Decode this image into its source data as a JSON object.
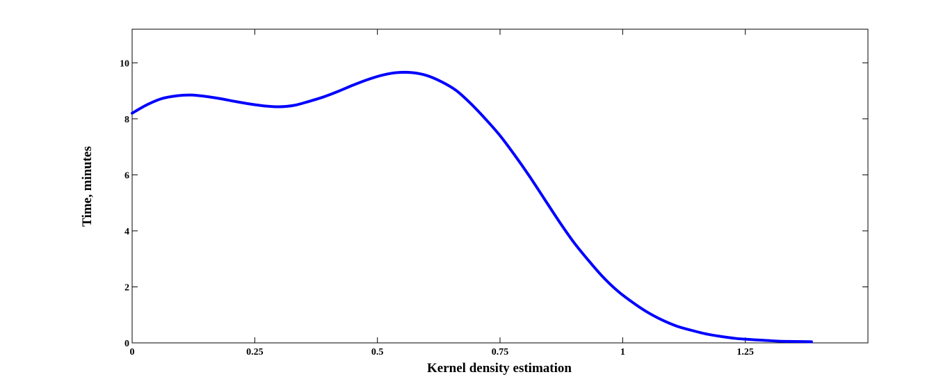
{
  "chart_data": {
    "type": "line",
    "title": "",
    "xlabel": "Kernel density estimation",
    "ylabel": "Time, minutes",
    "xlim": [
      0,
      1.5
    ],
    "ylim": [
      0,
      11.2
    ],
    "grid": false,
    "legend": "none",
    "x_ticks": [
      {
        "value": 0,
        "label": "0"
      },
      {
        "value": 0.25,
        "label": "0.25"
      },
      {
        "value": 0.5,
        "label": "0.5"
      },
      {
        "value": 0.75,
        "label": "0.75"
      },
      {
        "value": 1,
        "label": "1"
      },
      {
        "value": 1.25,
        "label": "1.25"
      }
    ],
    "y_ticks": [
      {
        "value": 0,
        "label": "0"
      },
      {
        "value": 2,
        "label": "2"
      },
      {
        "value": 4,
        "label": "4"
      },
      {
        "value": 6,
        "label": "6"
      },
      {
        "value": 8,
        "label": "8"
      },
      {
        "value": 10,
        "label": "10"
      }
    ],
    "series": [
      {
        "color": "#0000ff",
        "x": [
          0,
          0.03,
          0.06,
          0.09,
          0.12,
          0.15,
          0.18,
          0.21,
          0.24,
          0.27,
          0.3,
          0.33,
          0.36,
          0.39,
          0.42,
          0.45,
          0.48,
          0.51,
          0.54,
          0.57,
          0.6,
          0.63,
          0.66,
          0.69,
          0.72,
          0.75,
          0.78,
          0.81,
          0.84,
          0.87,
          0.9,
          0.93,
          0.96,
          0.99,
          1.02,
          1.05,
          1.08,
          1.11,
          1.14,
          1.17,
          1.2,
          1.23,
          1.26,
          1.29,
          1.32,
          1.35,
          1.385
        ],
        "y": [
          8.2,
          8.5,
          8.72,
          8.82,
          8.85,
          8.8,
          8.72,
          8.62,
          8.53,
          8.46,
          8.43,
          8.48,
          8.62,
          8.78,
          8.98,
          9.2,
          9.4,
          9.56,
          9.65,
          9.65,
          9.55,
          9.33,
          9.02,
          8.55,
          8.0,
          7.4,
          6.7,
          5.95,
          5.15,
          4.35,
          3.6,
          2.95,
          2.35,
          1.85,
          1.45,
          1.1,
          0.82,
          0.6,
          0.45,
          0.32,
          0.23,
          0.16,
          0.12,
          0.09,
          0.06,
          0.05,
          0.04
        ]
      }
    ]
  }
}
